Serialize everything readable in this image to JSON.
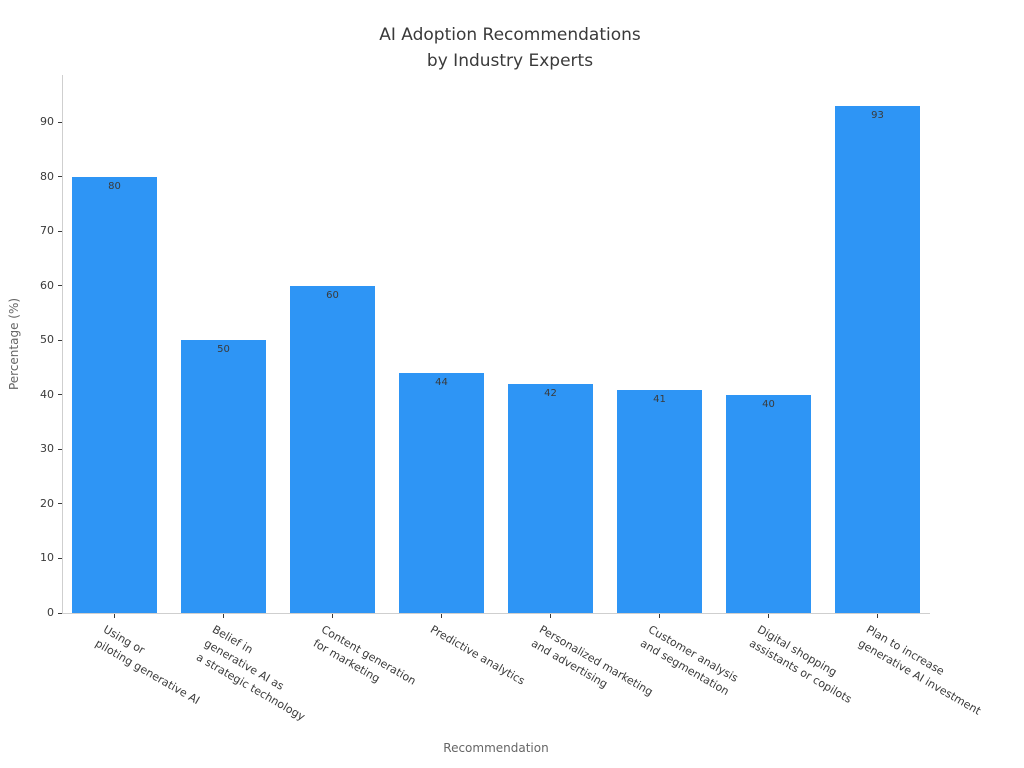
{
  "chart_data": {
    "type": "bar",
    "title": "AI Adoption Recommendations\nby Industry Experts",
    "xlabel": "Recommendation",
    "ylabel": "Percentage (%)",
    "categories": [
      "Using or\npiloting generative AI",
      "Belief in\ngenerative AI as\na strategic technology",
      "Content generation\nfor marketing",
      "Predictive analytics",
      "Personalized marketing\nand advertising",
      "Customer analysis\nand segmentation",
      "Digital shopping\nassistants or copilots",
      "Plan to increase\ngenerative AI investment"
    ],
    "values": [
      80,
      50,
      60,
      44,
      42,
      41,
      40,
      93
    ],
    "value_labels": [
      "80",
      "50",
      "60",
      "44",
      "42",
      "41",
      "40",
      "93"
    ],
    "yticks": [
      0,
      10,
      20,
      30,
      40,
      50,
      60,
      70,
      80,
      90
    ],
    "ylim": [
      0,
      98.7
    ],
    "grid": false,
    "legend": null,
    "bar_color": "#2e95f5"
  }
}
